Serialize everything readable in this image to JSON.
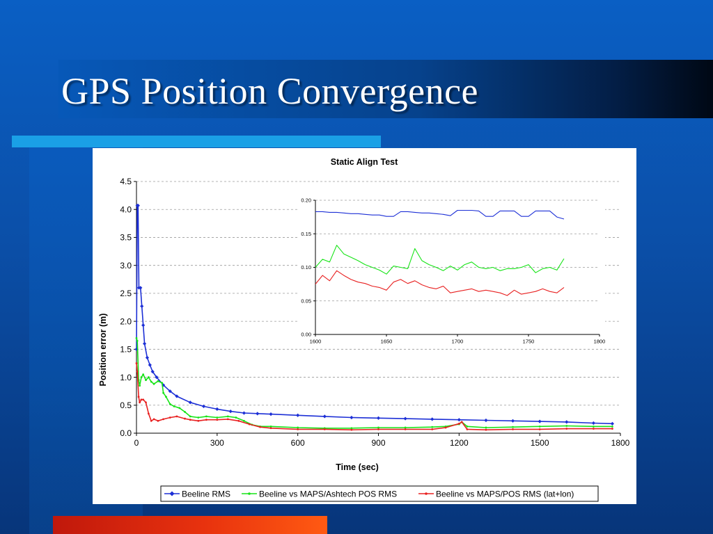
{
  "slide": {
    "title": "GPS Position Convergence"
  },
  "chart_data": [
    {
      "type": "line",
      "title": "Static Align Test",
      "xlabel": "Time (sec)",
      "ylabel": "Position error (m)",
      "xlim": [
        0,
        1800
      ],
      "ylim": [
        0,
        4.5
      ],
      "xticks": [
        0,
        300,
        600,
        900,
        1200,
        1500,
        1800
      ],
      "yticks": [
        0.0,
        0.5,
        1.0,
        1.5,
        2.0,
        2.5,
        3.0,
        3.5,
        4.0,
        4.5
      ],
      "ytick_labels": [
        "0.0",
        "0.5",
        "1.0",
        "1.5",
        "2.0",
        "2.5",
        "3.0",
        "3.5",
        "4.0",
        "4.5"
      ],
      "grid": "horizontal-dashed",
      "legend": "bottom",
      "series": [
        {
          "name": "Beeline RMS",
          "color": "#1c2fd6",
          "marker": "diamond",
          "x": [
            0,
            3,
            6,
            9,
            15,
            20,
            25,
            30,
            40,
            50,
            60,
            75,
            100,
            125,
            150,
            200,
            250,
            300,
            350,
            400,
            450,
            500,
            600,
            700,
            800,
            900,
            1000,
            1100,
            1200,
            1300,
            1400,
            1500,
            1600,
            1700,
            1770
          ],
          "y": [
            1.5,
            4.07,
            4.07,
            2.6,
            2.6,
            2.27,
            1.93,
            1.6,
            1.35,
            1.22,
            1.1,
            1.0,
            0.86,
            0.75,
            0.66,
            0.55,
            0.48,
            0.43,
            0.39,
            0.36,
            0.35,
            0.34,
            0.32,
            0.3,
            0.28,
            0.27,
            0.26,
            0.25,
            0.24,
            0.23,
            0.22,
            0.21,
            0.2,
            0.18,
            0.17
          ]
        },
        {
          "name": "Beeline vs MAPS/Ashtech POS RMS",
          "color": "#16e416",
          "marker": "dot",
          "x": [
            0,
            3,
            8,
            12,
            18,
            25,
            35,
            45,
            55,
            65,
            80,
            95,
            100,
            110,
            125,
            140,
            160,
            180,
            200,
            230,
            260,
            300,
            340,
            370,
            400,
            430,
            460,
            500,
            600,
            700,
            800,
            900,
            1000,
            1100,
            1150,
            1200,
            1210,
            1230,
            1300,
            1400,
            1500,
            1600,
            1700,
            1770
          ],
          "y": [
            1.7,
            1.65,
            0.95,
            0.85,
            1.0,
            1.05,
            0.95,
            1.0,
            0.92,
            0.88,
            0.93,
            0.9,
            0.72,
            0.65,
            0.52,
            0.48,
            0.45,
            0.38,
            0.3,
            0.28,
            0.3,
            0.28,
            0.3,
            0.28,
            0.22,
            0.15,
            0.12,
            0.12,
            0.1,
            0.09,
            0.09,
            0.1,
            0.1,
            0.11,
            0.12,
            0.16,
            0.2,
            0.12,
            0.1,
            0.11,
            0.12,
            0.13,
            0.12,
            0.12
          ]
        },
        {
          "name": "Beeline vs MAPS/POS RMS (lat+lon)",
          "color": "#e82020",
          "marker": "dot",
          "x": [
            0,
            3,
            8,
            12,
            18,
            25,
            35,
            45,
            55,
            65,
            80,
            100,
            125,
            150,
            180,
            200,
            230,
            260,
            300,
            340,
            380,
            420,
            460,
            500,
            600,
            700,
            800,
            900,
            1000,
            1100,
            1150,
            1200,
            1210,
            1230,
            1300,
            1400,
            1500,
            1600,
            1700,
            1770
          ],
          "y": [
            1.25,
            1.1,
            0.65,
            0.55,
            0.6,
            0.6,
            0.55,
            0.35,
            0.22,
            0.25,
            0.22,
            0.25,
            0.28,
            0.3,
            0.26,
            0.24,
            0.22,
            0.24,
            0.24,
            0.25,
            0.22,
            0.16,
            0.11,
            0.09,
            0.07,
            0.07,
            0.06,
            0.07,
            0.07,
            0.07,
            0.1,
            0.17,
            0.2,
            0.07,
            0.06,
            0.07,
            0.07,
            0.08,
            0.08,
            0.08
          ]
        }
      ]
    },
    {
      "type": "line",
      "role": "inset",
      "xlim": [
        1600,
        1800
      ],
      "ylim": [
        0,
        0.2
      ],
      "xticks": [
        1600,
        1650,
        1700,
        1750,
        1800
      ],
      "yticks": [
        0.0,
        0.05,
        0.1,
        0.15,
        0.2
      ],
      "ytick_labels": [
        "0.00",
        "0.05",
        "0.10",
        "0.15",
        "0.20"
      ],
      "grid": "horizontal-dashed",
      "series": [
        {
          "name": "Beeline RMS",
          "color": "#1c2fd6",
          "x": [
            1600,
            1605,
            1610,
            1615,
            1620,
            1625,
            1630,
            1635,
            1640,
            1645,
            1650,
            1655,
            1660,
            1665,
            1670,
            1675,
            1680,
            1685,
            1690,
            1695,
            1700,
            1705,
            1710,
            1715,
            1720,
            1725,
            1730,
            1735,
            1740,
            1745,
            1750,
            1755,
            1760,
            1765,
            1770,
            1775
          ],
          "y": [
            0.183,
            0.183,
            0.182,
            0.182,
            0.181,
            0.18,
            0.18,
            0.179,
            0.178,
            0.178,
            0.176,
            0.176,
            0.183,
            0.183,
            0.182,
            0.181,
            0.181,
            0.18,
            0.179,
            0.177,
            0.185,
            0.185,
            0.185,
            0.184,
            0.176,
            0.176,
            0.184,
            0.184,
            0.184,
            0.176,
            0.176,
            0.184,
            0.184,
            0.184,
            0.175,
            0.172
          ]
        },
        {
          "name": "Beeline vs MAPS/Ashtech POS RMS",
          "color": "#16e416",
          "x": [
            1600,
            1605,
            1610,
            1615,
            1620,
            1625,
            1630,
            1635,
            1640,
            1645,
            1650,
            1655,
            1660,
            1665,
            1670,
            1675,
            1680,
            1685,
            1690,
            1695,
            1700,
            1705,
            1710,
            1715,
            1720,
            1725,
            1730,
            1735,
            1740,
            1745,
            1750,
            1755,
            1760,
            1765,
            1770,
            1775
          ],
          "y": [
            0.1,
            0.112,
            0.108,
            0.133,
            0.12,
            0.115,
            0.11,
            0.104,
            0.1,
            0.096,
            0.09,
            0.102,
            0.1,
            0.098,
            0.128,
            0.11,
            0.104,
            0.1,
            0.095,
            0.102,
            0.096,
            0.104,
            0.108,
            0.1,
            0.098,
            0.1,
            0.095,
            0.098,
            0.098,
            0.1,
            0.104,
            0.092,
            0.098,
            0.1,
            0.096,
            0.113
          ]
        },
        {
          "name": "Beeline vs MAPS/POS RMS (lat+lon)",
          "color": "#e82020",
          "x": [
            1600,
            1605,
            1610,
            1615,
            1620,
            1625,
            1630,
            1635,
            1640,
            1645,
            1650,
            1655,
            1660,
            1665,
            1670,
            1675,
            1680,
            1685,
            1690,
            1695,
            1700,
            1705,
            1710,
            1715,
            1720,
            1725,
            1730,
            1735,
            1740,
            1745,
            1750,
            1755,
            1760,
            1765,
            1770,
            1775
          ],
          "y": [
            0.075,
            0.088,
            0.08,
            0.095,
            0.088,
            0.082,
            0.078,
            0.076,
            0.072,
            0.07,
            0.066,
            0.078,
            0.082,
            0.076,
            0.08,
            0.074,
            0.07,
            0.068,
            0.072,
            0.062,
            0.064,
            0.066,
            0.068,
            0.064,
            0.066,
            0.064,
            0.062,
            0.058,
            0.066,
            0.06,
            0.062,
            0.064,
            0.068,
            0.064,
            0.062,
            0.07
          ]
        }
      ]
    }
  ]
}
